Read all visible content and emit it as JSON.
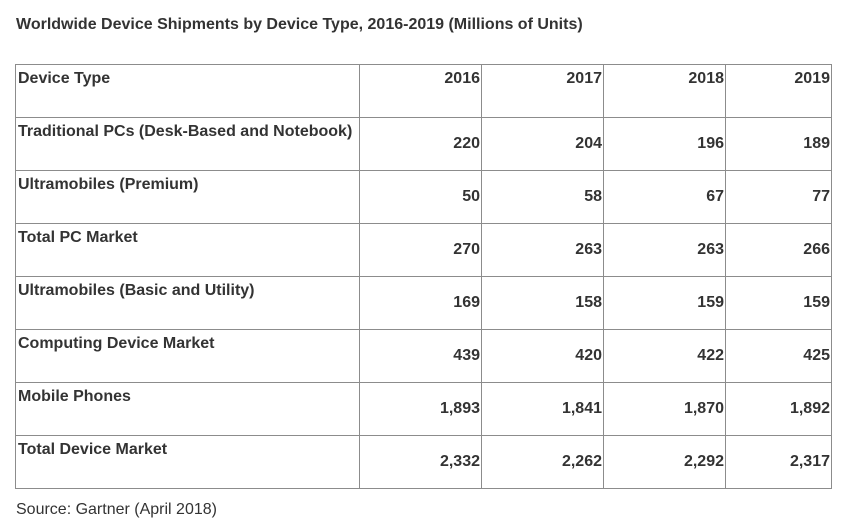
{
  "title": "Worldwide Device Shipments by Device Type, 2016-2019 (Millions of Units)",
  "table": {
    "header": {
      "label": "Device Type",
      "years": [
        "2016",
        "2017",
        "2018",
        "2019"
      ]
    },
    "rows": [
      {
        "label": "Traditional PCs (Desk-Based and Notebook)",
        "values": [
          "220",
          "204",
          "196",
          "189"
        ]
      },
      {
        "label": "Ultramobiles (Premium)",
        "values": [
          "50",
          "58",
          "67",
          "77"
        ]
      },
      {
        "label": "Total PC Market",
        "values": [
          "270",
          "263",
          "263",
          "266"
        ]
      },
      {
        "label": "Ultramobiles (Basic and Utility)",
        "values": [
          "169",
          "158",
          "159",
          "159"
        ]
      },
      {
        "label": "Computing Device Market",
        "values": [
          "439",
          "420",
          "422",
          "425"
        ]
      },
      {
        "label": "Mobile Phones",
        "values": [
          "1,893",
          "1,841",
          "1,870",
          "1,892"
        ]
      },
      {
        "label": "Total Device Market",
        "values": [
          "2,332",
          "2,262",
          "2,292",
          "2,317"
        ]
      }
    ]
  },
  "source": "Source: Gartner (April 2018)"
}
